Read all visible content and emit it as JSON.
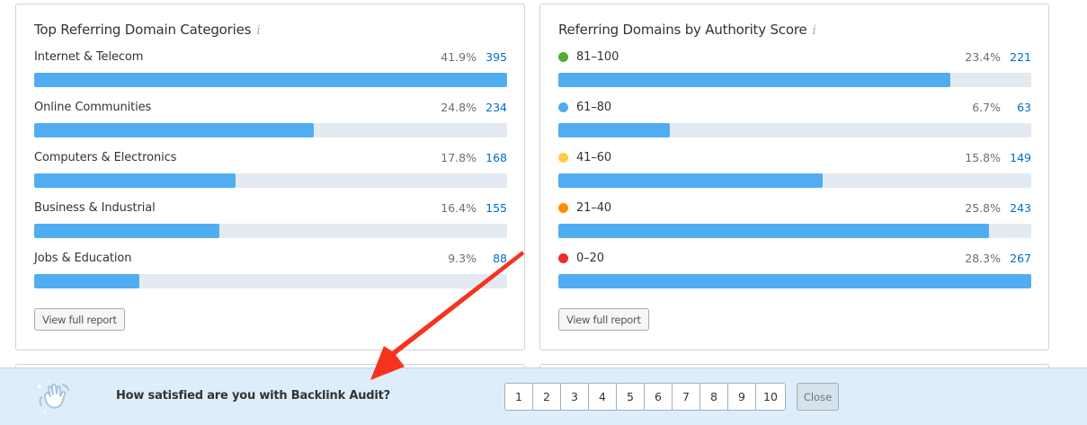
{
  "cards": [
    {
      "title": "Top Referring Domain Categories",
      "info_icon": "i",
      "button_label": "View full report",
      "rows": [
        {
          "label": "Internet & Telecom",
          "pct": "41.9%",
          "count": "395",
          "bar_pct": 100
        },
        {
          "label": "Online Communities",
          "pct": "24.8%",
          "count": "234",
          "bar_pct": 59.2
        },
        {
          "label": "Computers & Electronics",
          "pct": "17.8%",
          "count": "168",
          "bar_pct": 42.5
        },
        {
          "label": "Business & Industrial",
          "pct": "16.4%",
          "count": "155",
          "bar_pct": 39.2
        },
        {
          "label": "Jobs & Education",
          "pct": "9.3%",
          "count": "88",
          "bar_pct": 22.3
        }
      ]
    },
    {
      "title": "Referring Domains by Authority Score",
      "info_icon": "i",
      "button_label": "View full report",
      "rows": [
        {
          "label": "81–100",
          "pct": "23.4%",
          "count": "221",
          "bar_pct": 82.8,
          "dot_color": "#4fae33"
        },
        {
          "label": "61–80",
          "pct": "6.7%",
          "count": "63",
          "bar_pct": 23.6,
          "dot_color": "#50adf2"
        },
        {
          "label": "41–60",
          "pct": "15.8%",
          "count": "149",
          "bar_pct": 55.8,
          "dot_color": "#ffcc48"
        },
        {
          "label": "21–40",
          "pct": "25.8%",
          "count": "243",
          "bar_pct": 91.0,
          "dot_color": "#ff8c00"
        },
        {
          "label": "0–20",
          "pct": "28.3%",
          "count": "267",
          "bar_pct": 100,
          "dot_color": "#eb2c2c"
        }
      ]
    }
  ],
  "feedback": {
    "icon": "waving-hand-icon",
    "question": "How satisfied are you with Backlink Audit?",
    "scale": [
      "1",
      "2",
      "3",
      "4",
      "5",
      "6",
      "7",
      "8",
      "9",
      "10"
    ],
    "close_label": "Close"
  },
  "colors": {
    "bar_fill": "#50adf2",
    "bar_track": "#e4eaf1",
    "count_link": "#006dca",
    "feedback_bg": "#deedfa",
    "annotation_arrow": "#f5331f"
  }
}
